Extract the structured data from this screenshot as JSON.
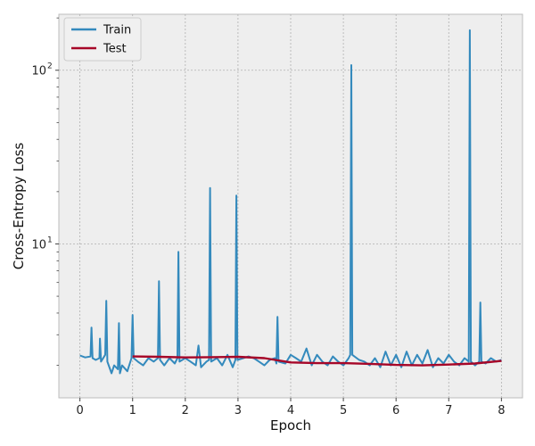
{
  "chart_data": {
    "type": "line",
    "title": "",
    "xlabel": "Epoch",
    "ylabel": "Cross-Entropy Loss",
    "xlim": [
      -0.4,
      8.4
    ],
    "ylim": [
      1.3,
      210
    ],
    "yscale": "log",
    "grid": true,
    "legend_position": "top-left",
    "x_ticks": [
      0,
      1,
      2,
      3,
      4,
      5,
      6,
      7,
      8
    ],
    "x_tick_labels": [
      "0",
      "1",
      "2",
      "3",
      "4",
      "5",
      "6",
      "7",
      "8"
    ],
    "y_major_ticks": [
      10,
      100
    ],
    "y_major_tick_labels": [
      "10",
      "10"
    ],
    "y_major_tick_exponents": [
      "1",
      "2"
    ],
    "y_minor_ticks": [
      2,
      3,
      4,
      5,
      6,
      7,
      8,
      9,
      20,
      30,
      40,
      50,
      60,
      70,
      80,
      90,
      200
    ],
    "series": [
      {
        "name": "Train",
        "color": "#348abd",
        "x": [
          0,
          0.1,
          0.2,
          0.22,
          0.24,
          0.3,
          0.37,
          0.38,
          0.4,
          0.48,
          0.5,
          0.52,
          0.6,
          0.65,
          0.72,
          0.74,
          0.76,
          0.8,
          0.9,
          0.98,
          1.0,
          1.02,
          1.1,
          1.2,
          1.3,
          1.4,
          1.48,
          1.5,
          1.52,
          1.6,
          1.7,
          1.8,
          1.85,
          1.87,
          1.89,
          2.0,
          2.1,
          2.2,
          2.25,
          2.3,
          2.4,
          2.45,
          2.47,
          2.49,
          2.6,
          2.7,
          2.8,
          2.9,
          2.95,
          2.97,
          2.99,
          3.1,
          3.2,
          3.3,
          3.4,
          3.5,
          3.6,
          3.7,
          3.73,
          3.75,
          3.77,
          3.9,
          4.0,
          4.1,
          4.2,
          4.3,
          4.4,
          4.5,
          4.6,
          4.7,
          4.8,
          4.9,
          5.0,
          5.1,
          5.13,
          5.15,
          5.17,
          5.3,
          5.4,
          5.5,
          5.6,
          5.7,
          5.8,
          5.9,
          6.0,
          6.1,
          6.2,
          6.3,
          6.4,
          6.5,
          6.6,
          6.7,
          6.8,
          6.9,
          7.0,
          7.1,
          7.2,
          7.3,
          7.38,
          7.4,
          7.42,
          7.5,
          7.58,
          7.6,
          7.62,
          7.7,
          7.8,
          7.9,
          8.0
        ],
        "values": [
          2.28,
          2.22,
          2.25,
          3.3,
          2.2,
          2.15,
          2.2,
          2.85,
          2.1,
          2.3,
          4.7,
          2.1,
          1.8,
          2.0,
          1.9,
          3.5,
          1.8,
          2.0,
          1.85,
          2.2,
          3.9,
          2.2,
          2.1,
          2.0,
          2.2,
          2.1,
          2.2,
          6.1,
          2.15,
          2.0,
          2.2,
          2.05,
          2.2,
          9.0,
          2.1,
          2.2,
          2.1,
          2.0,
          2.6,
          1.95,
          2.1,
          2.15,
          21,
          2.1,
          2.2,
          2.0,
          2.3,
          1.95,
          2.15,
          19,
          2.15,
          2.2,
          2.25,
          2.2,
          2.1,
          2.0,
          2.15,
          2.2,
          2.05,
          3.8,
          2.1,
          2.05,
          2.3,
          2.2,
          2.1,
          2.5,
          2.0,
          2.3,
          2.1,
          2.0,
          2.25,
          2.1,
          2.0,
          2.2,
          2.3,
          107,
          2.3,
          2.15,
          2.1,
          2.0,
          2.2,
          1.95,
          2.4,
          2.0,
          2.3,
          1.95,
          2.4,
          2.0,
          2.3,
          2.05,
          2.45,
          1.95,
          2.2,
          2.05,
          2.3,
          2.1,
          2.0,
          2.2,
          2.1,
          170,
          2.1,
          2.0,
          2.1,
          4.6,
          2.1,
          2.05,
          2.2,
          2.1,
          2.15
        ]
      },
      {
        "name": "Test",
        "color": "#a60628",
        "x": [
          1,
          1.5,
          2,
          2.5,
          3,
          3.5,
          4,
          4.5,
          5,
          5.5,
          6,
          6.5,
          7,
          7.5,
          8
        ],
        "values": [
          2.25,
          2.24,
          2.22,
          2.23,
          2.24,
          2.2,
          2.08,
          2.06,
          2.06,
          2.04,
          2.01,
          2.0,
          2.02,
          2.05,
          2.12
        ]
      }
    ]
  }
}
